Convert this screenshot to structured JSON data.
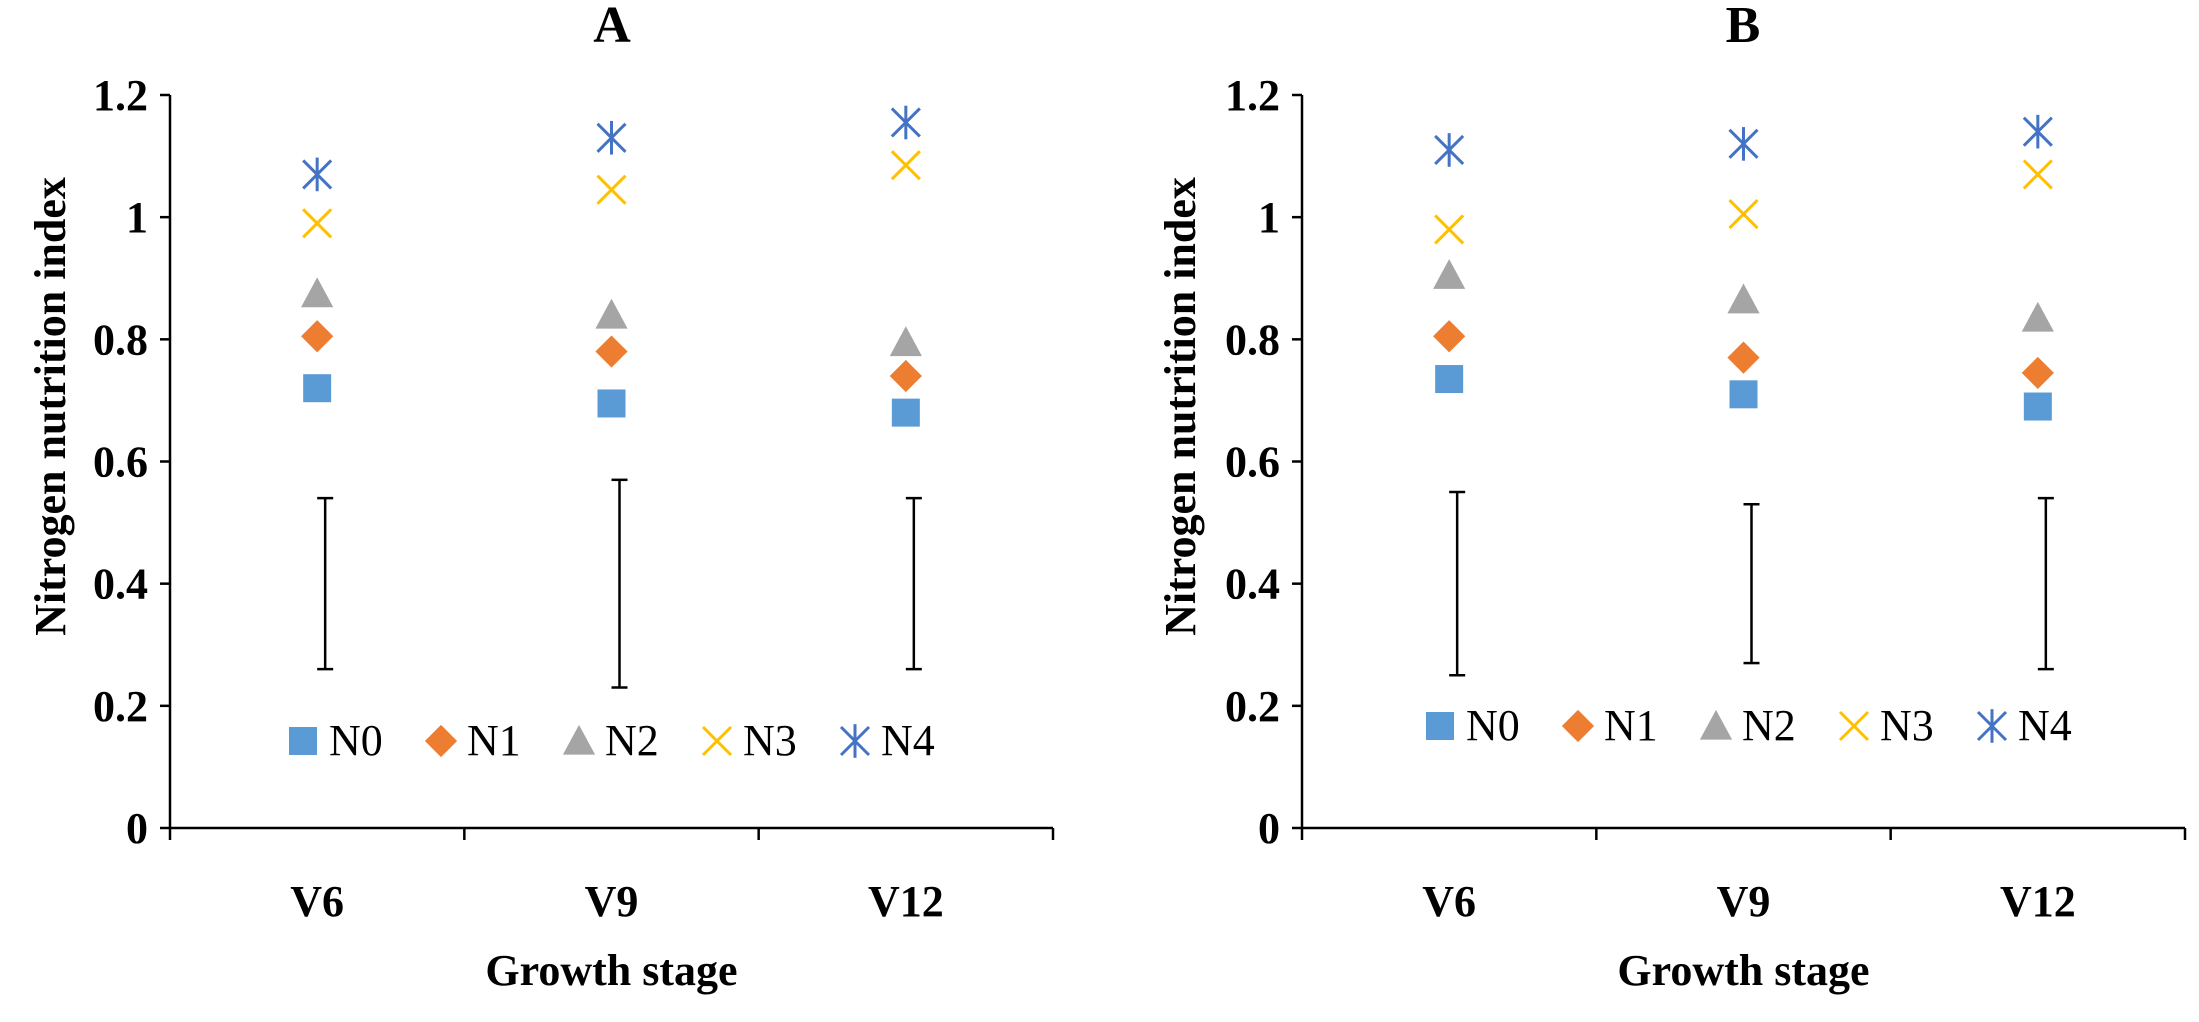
{
  "chart_data": [
    {
      "type": "scatter",
      "title": "A",
      "xlabel": "Growth stage",
      "ylabel": "Nitrogen nutrition index",
      "ylim": [
        0,
        1.2
      ],
      "yticks": [
        "0",
        "0.2",
        "0.4",
        "0.6",
        "0.8",
        "1",
        "1.2"
      ],
      "categories": [
        "V6",
        "V9",
        "V12"
      ],
      "legend_position": "bottom-center",
      "series": [
        {
          "name": "N0",
          "marker": "square",
          "color": "#5b9bd5",
          "values": [
            0.72,
            0.695,
            0.68
          ]
        },
        {
          "name": "N1",
          "marker": "diamond",
          "color": "#ed7d31",
          "values": [
            0.805,
            0.78,
            0.74
          ]
        },
        {
          "name": "N2",
          "marker": "triangle",
          "color": "#a5a5a5",
          "values": [
            0.875,
            0.84,
            0.795
          ]
        },
        {
          "name": "N3",
          "marker": "x",
          "color": "#ffc000",
          "values": [
            0.99,
            1.045,
            1.085
          ]
        },
        {
          "name": "N4",
          "marker": "star",
          "color": "#4472c4",
          "values": [
            1.07,
            1.13,
            1.155
          ]
        }
      ],
      "error_bars": [
        {
          "category": "V6",
          "low": 0.26,
          "high": 0.54
        },
        {
          "category": "V9",
          "low": 0.23,
          "high": 0.57
        },
        {
          "category": "V12",
          "low": 0.26,
          "high": 0.54
        }
      ]
    },
    {
      "type": "scatter",
      "title": "B",
      "xlabel": "Growth stage",
      "ylabel": "Nitrogen nutrition index",
      "ylim": [
        0,
        1.2
      ],
      "yticks": [
        "0",
        "0.2",
        "0.4",
        "0.6",
        "0.8",
        "1",
        "1.2"
      ],
      "categories": [
        "V6",
        "V9",
        "V12"
      ],
      "legend_position": "bottom-center",
      "series": [
        {
          "name": "N0",
          "marker": "square",
          "color": "#5b9bd5",
          "values": [
            0.735,
            0.71,
            0.69
          ]
        },
        {
          "name": "N1",
          "marker": "diamond",
          "color": "#ed7d31",
          "values": [
            0.805,
            0.77,
            0.745
          ]
        },
        {
          "name": "N2",
          "marker": "triangle",
          "color": "#a5a5a5",
          "values": [
            0.905,
            0.865,
            0.835
          ]
        },
        {
          "name": "N3",
          "marker": "x",
          "color": "#ffc000",
          "values": [
            0.98,
            1.005,
            1.07
          ]
        },
        {
          "name": "N4",
          "marker": "star",
          "color": "#4472c4",
          "values": [
            1.11,
            1.12,
            1.14
          ]
        }
      ],
      "error_bars": [
        {
          "category": "V6",
          "low": 0.25,
          "high": 0.55
        },
        {
          "category": "V9",
          "low": 0.27,
          "high": 0.53
        },
        {
          "category": "V12",
          "low": 0.26,
          "high": 0.54
        }
      ]
    }
  ]
}
